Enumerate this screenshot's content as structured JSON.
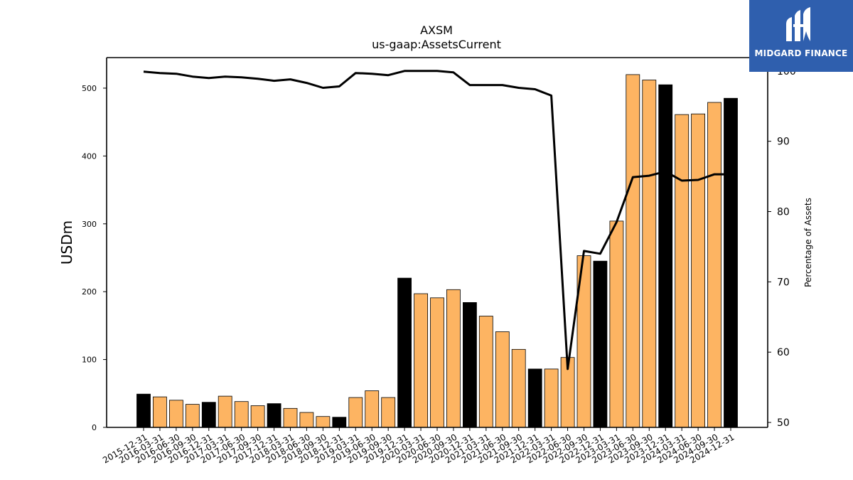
{
  "chart_data": {
    "type": "bar",
    "title": "AXSM",
    "subtitle": "us-gaap:AssetsCurrent",
    "ylabel": "USDm",
    "y2label": "Percentage of Assets",
    "ylim": [
      0,
      545
    ],
    "y2lim": [
      49.3,
      101.9
    ],
    "yticks": [
      0,
      100,
      200,
      300,
      400,
      500
    ],
    "y2ticks": [
      50,
      60,
      70,
      80,
      90,
      100
    ],
    "categories": [
      "2015-12-31",
      "2016-03-31",
      "2016-06-30",
      "2016-09-30",
      "2016-12-31",
      "2017-03-31",
      "2017-06-30",
      "2017-09-30",
      "2017-12-31",
      "2018-03-31",
      "2018-06-30",
      "2018-09-30",
      "2018-12-31",
      "2019-03-31",
      "2019-06-30",
      "2019-09-30",
      "2019-12-31",
      "2020-03-31",
      "2020-06-30",
      "2020-09-30",
      "2020-12-31",
      "2021-03-31",
      "2021-06-30",
      "2021-09-30",
      "2021-12-31",
      "2022-03-31",
      "2022-06-30",
      "2022-09-30",
      "2022-12-31",
      "2023-03-31",
      "2023-06-30",
      "2023-09-30",
      "2023-12-31",
      "2024-03-31",
      "2024-06-30",
      "2024-09-30",
      "2024-12-31"
    ],
    "series": [
      {
        "kind": "bar",
        "values": [
          49,
          45,
          40,
          34,
          37,
          46,
          38,
          32,
          35,
          28,
          22,
          16,
          15,
          44,
          54,
          44,
          220,
          197,
          191,
          203,
          184,
          164,
          141,
          115,
          86,
          86,
          103,
          253,
          245,
          304,
          520,
          512,
          505,
          461,
          462,
          479,
          485
        ],
        "colors": [
          "#000000",
          "#fdb462",
          "#fdb462",
          "#fdb462",
          "#000000",
          "#fdb462",
          "#fdb462",
          "#fdb462",
          "#000000",
          "#fdb462",
          "#fdb462",
          "#fdb462",
          "#000000",
          "#fdb462",
          "#fdb462",
          "#fdb462",
          "#000000",
          "#fdb462",
          "#fdb462",
          "#fdb462",
          "#000000",
          "#fdb462",
          "#fdb462",
          "#fdb462",
          "#000000",
          "#fdb462",
          "#fdb462",
          "#fdb462",
          "#000000",
          "#fdb462",
          "#fdb462",
          "#fdb462",
          "#000000",
          "#fdb462",
          "#fdb462",
          "#fdb462",
          "#000000"
        ]
      },
      {
        "kind": "line",
        "axis": "right",
        "color": "#000000",
        "values": [
          99.9,
          99.7,
          99.6,
          99.2,
          99.0,
          99.2,
          99.1,
          98.9,
          98.6,
          98.8,
          98.3,
          97.6,
          97.8,
          99.7,
          99.6,
          99.4,
          100.0,
          100.0,
          100.0,
          99.8,
          98.0,
          98.0,
          98.0,
          97.6,
          97.4,
          96.5,
          57.6,
          74.4,
          74.0,
          78.5,
          84.9,
          85.1,
          85.7,
          84.4,
          84.5,
          85.3,
          85.3
        ]
      }
    ],
    "grid": false,
    "legend": "none"
  },
  "branding": {
    "logo_text": "MIDGARD FINANCE",
    "logo_color": "#2f5fae"
  }
}
